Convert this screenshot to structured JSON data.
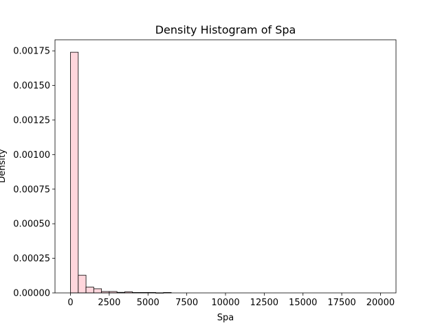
{
  "chart_data": {
    "type": "bar",
    "title": "Density Histogram of Spa",
    "xlabel": "Spa",
    "ylabel": "Density",
    "xlim": [
      -1000,
      21000
    ],
    "ylim": [
      0,
      0.00183
    ],
    "grid": false,
    "legend": "none",
    "bar_color": "#ffd6dc",
    "edge_color": "#000000",
    "bin_width": 500,
    "x_ticks": [
      {
        "value": 0,
        "label": "0"
      },
      {
        "value": 2500,
        "label": "2500"
      },
      {
        "value": 5000,
        "label": "5000"
      },
      {
        "value": 7500,
        "label": "7500"
      },
      {
        "value": 10000,
        "label": "10000"
      },
      {
        "value": 12500,
        "label": "12500"
      },
      {
        "value": 15000,
        "label": "15000"
      },
      {
        "value": 17500,
        "label": "17500"
      },
      {
        "value": 20000,
        "label": "20000"
      }
    ],
    "y_ticks": [
      {
        "value": 0,
        "label": "0.00000"
      },
      {
        "value": 0.00025,
        "label": "0.00025"
      },
      {
        "value": 0.0005,
        "label": "0.00050"
      },
      {
        "value": 0.00075,
        "label": "0.00075"
      },
      {
        "value": 0.001,
        "label": "0.00100"
      },
      {
        "value": 0.00125,
        "label": "0.00125"
      },
      {
        "value": 0.0015,
        "label": "0.00150"
      },
      {
        "value": 0.00175,
        "label": "0.00175"
      }
    ],
    "bins": [
      {
        "start": 0,
        "end": 500,
        "density": 0.00174
      },
      {
        "start": 500,
        "end": 1000,
        "density": 0.000128
      },
      {
        "start": 1000,
        "end": 1500,
        "density": 4.2e-05
      },
      {
        "start": 1500,
        "end": 2000,
        "density": 3e-05
      },
      {
        "start": 2000,
        "end": 2500,
        "density": 1e-05
      },
      {
        "start": 2500,
        "end": 3000,
        "density": 1e-05
      },
      {
        "start": 3000,
        "end": 3500,
        "density": 4e-06
      },
      {
        "start": 3500,
        "end": 4000,
        "density": 8e-06
      },
      {
        "start": 4000,
        "end": 4500,
        "density": 3e-06
      },
      {
        "start": 4500,
        "end": 5000,
        "density": 3e-06
      },
      {
        "start": 5000,
        "end": 5500,
        "density": 3e-06
      },
      {
        "start": 5500,
        "end": 6000,
        "density": 1e-06
      },
      {
        "start": 6000,
        "end": 6500,
        "density": 3e-06
      },
      {
        "start": 6500,
        "end": 7000,
        "density": 0.0
      },
      {
        "start": 7000,
        "end": 7500,
        "density": 0.0
      },
      {
        "start": 7500,
        "end": 8000,
        "density": 0.0
      },
      {
        "start": 8000,
        "end": 8500,
        "density": 0.0
      },
      {
        "start": 8500,
        "end": 9000,
        "density": 0.0
      },
      {
        "start": 9000,
        "end": 9500,
        "density": 0.0
      },
      {
        "start": 9500,
        "end": 10000,
        "density": 0.0
      },
      {
        "start": 10000,
        "end": 10500,
        "density": 0.0
      },
      {
        "start": 10500,
        "end": 11000,
        "density": 0.0
      },
      {
        "start": 11000,
        "end": 11500,
        "density": 0.0
      },
      {
        "start": 11500,
        "end": 12000,
        "density": 0.0
      },
      {
        "start": 12000,
        "end": 12500,
        "density": 0.0
      },
      {
        "start": 12500,
        "end": 13000,
        "density": 0.0
      },
      {
        "start": 13000,
        "end": 13500,
        "density": 0.0
      },
      {
        "start": 13500,
        "end": 14000,
        "density": 0.0
      },
      {
        "start": 14000,
        "end": 14500,
        "density": 0.0
      },
      {
        "start": 14500,
        "end": 15000,
        "density": 0.0
      },
      {
        "start": 15000,
        "end": 15500,
        "density": 0.0
      },
      {
        "start": 15500,
        "end": 16000,
        "density": 0.0
      },
      {
        "start": 16000,
        "end": 16500,
        "density": 0.0
      },
      {
        "start": 16500,
        "end": 17000,
        "density": 0.0
      },
      {
        "start": 17000,
        "end": 17500,
        "density": 0.0
      },
      {
        "start": 17500,
        "end": 18000,
        "density": 0.0
      },
      {
        "start": 18000,
        "end": 18500,
        "density": 0.0
      },
      {
        "start": 18500,
        "end": 19000,
        "density": 0.0
      },
      {
        "start": 19000,
        "end": 19500,
        "density": 0.0
      },
      {
        "start": 19500,
        "end": 20000,
        "density": 0.0
      }
    ]
  }
}
